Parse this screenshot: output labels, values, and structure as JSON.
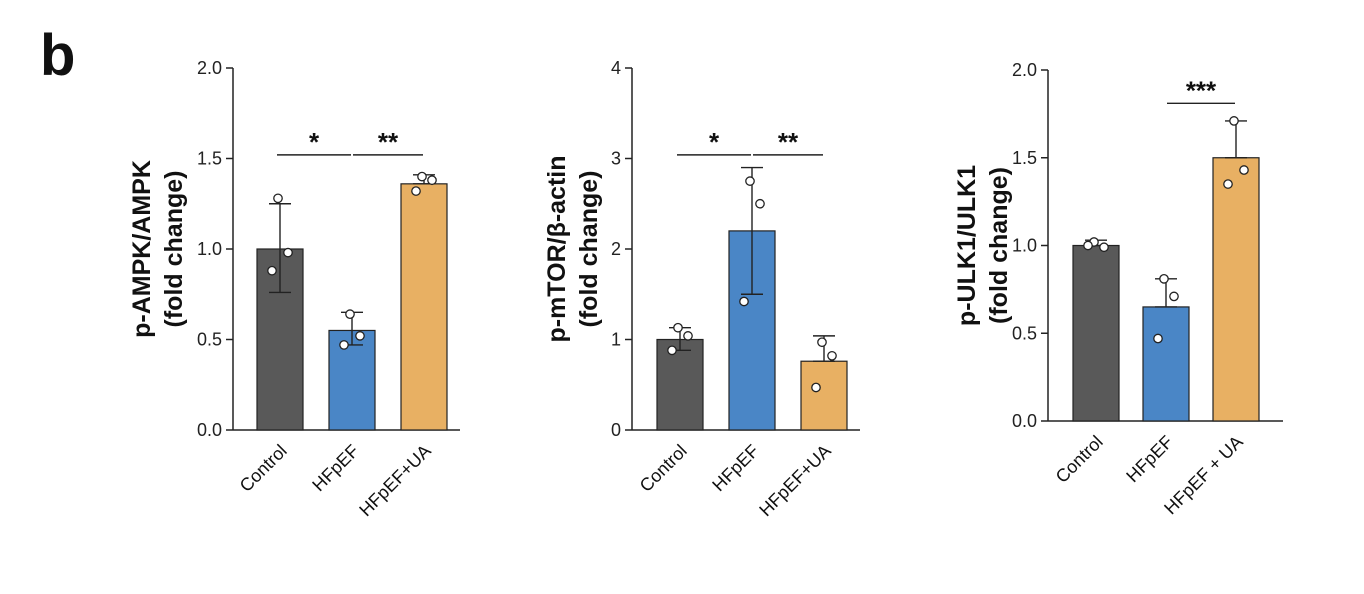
{
  "panel_label": "b",
  "chart_data": [
    {
      "type": "bar",
      "ylabel": [
        "p-AMPK/AMPK",
        "(fold change)"
      ],
      "categories": [
        "Control",
        "HFpEF",
        "HFpEF+UA"
      ],
      "values": [
        1.0,
        0.55,
        1.36
      ],
      "error_upper": [
        1.25,
        0.65,
        1.41
      ],
      "error_lower": [
        0.76,
        0.47,
        1.36
      ],
      "points": [
        [
          1.28,
          0.98,
          0.88
        ],
        [
          0.64,
          0.52,
          0.47
        ],
        [
          1.4,
          1.38,
          1.32
        ]
      ],
      "ylim": [
        0,
        2.0
      ],
      "yticks": [
        "0.0",
        "0.5",
        "1.0",
        "1.5",
        "2.0"
      ],
      "colors": [
        "#595959",
        "#4a86c6",
        "#e8b063"
      ],
      "significance": [
        {
          "from": 0,
          "to": 1,
          "level": 1.52,
          "label": "*"
        },
        {
          "from": 1,
          "to": 2,
          "level": 1.52,
          "label": "**"
        }
      ]
    },
    {
      "type": "bar",
      "ylabel": [
        "p-mTOR/β-actin",
        "(fold change)"
      ],
      "categories": [
        "Control",
        "HFpEF",
        "HFpEF+UA"
      ],
      "values": [
        1.0,
        2.2,
        0.76
      ],
      "error_upper": [
        1.13,
        2.9,
        1.04
      ],
      "error_lower": [
        0.88,
        1.5,
        0.76
      ],
      "points": [
        [
          1.13,
          1.04,
          0.88
        ],
        [
          2.75,
          2.5,
          1.42
        ],
        [
          0.97,
          0.82,
          0.47
        ]
      ],
      "ylim": [
        0,
        4
      ],
      "yticks": [
        "0",
        "1",
        "2",
        "3",
        "4"
      ],
      "colors": [
        "#595959",
        "#4a86c6",
        "#e8b063"
      ],
      "significance": [
        {
          "from": 0,
          "to": 1,
          "level": 3.04,
          "label": "*"
        },
        {
          "from": 1,
          "to": 2,
          "level": 3.04,
          "label": "**"
        }
      ]
    },
    {
      "type": "bar",
      "ylabel": [
        "p-ULK1/ULK1",
        "(fold change)"
      ],
      "categories": [
        "Control",
        "HFpEF",
        "HFpEF + UA"
      ],
      "values": [
        1.0,
        0.65,
        1.5
      ],
      "error_upper": [
        1.03,
        0.81,
        1.71
      ],
      "error_lower": [
        1.0,
        0.65,
        1.5
      ],
      "points": [
        [
          1.02,
          0.99,
          1.0
        ],
        [
          0.81,
          0.71,
          0.47
        ],
        [
          1.71,
          1.43,
          1.35
        ]
      ],
      "ylim": [
        0,
        2.0
      ],
      "yticks": [
        "0.0",
        "0.5",
        "1.0",
        "1.5",
        "2.0"
      ],
      "colors": [
        "#595959",
        "#4a86c6",
        "#e8b063"
      ],
      "significance": [
        {
          "from": 1,
          "to": 2,
          "level": 1.81,
          "label": "***"
        }
      ]
    }
  ]
}
